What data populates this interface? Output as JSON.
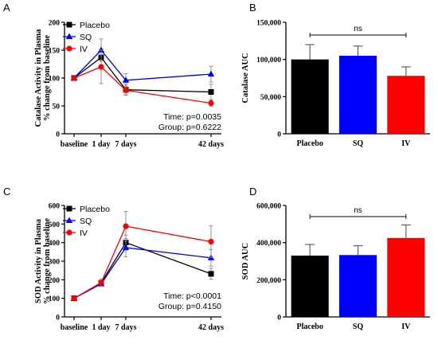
{
  "chart_data": [
    {
      "panel": "A",
      "type": "line",
      "ylabel_line1": "Catalase Activity in Plasma",
      "ylabel_line2": "% change from baseline",
      "x": [
        "baseline",
        "1 day",
        "7 days",
        "42 days"
      ],
      "x_days": [
        0,
        1,
        7,
        42
      ],
      "ylim": [
        0,
        200
      ],
      "yticks": [
        0,
        50,
        100,
        150,
        200
      ],
      "series": [
        {
          "name": "Placebo",
          "color": "#000000",
          "marker": "square",
          "values": [
            100,
            137,
            79,
            75
          ],
          "errors": [
            0,
            15,
            10,
            14
          ]
        },
        {
          "name": "SQ",
          "color": "#0000ff",
          "marker": "triangle",
          "values": [
            100,
            150,
            96,
            107
          ],
          "errors": [
            0,
            20,
            12,
            14
          ]
        },
        {
          "name": "IV",
          "color": "#ff0000",
          "marker": "circle",
          "values": [
            100,
            120,
            78,
            55
          ],
          "errors": [
            0,
            30,
            8,
            6
          ]
        }
      ],
      "annotations": [
        "Time: p=0.0035",
        "Group: p=0.6222"
      ]
    },
    {
      "panel": "B",
      "type": "bar",
      "ylabel": "Catalase AUC",
      "categories": [
        "Placebo",
        "SQ",
        "IV"
      ],
      "values": [
        100000,
        105000,
        78000
      ],
      "errors": [
        20000,
        13000,
        12000
      ],
      "colors": [
        "#000000",
        "#0000ff",
        "#ff0000"
      ],
      "ylim": [
        0,
        150000
      ],
      "yticks": [
        "0",
        "50,000",
        "100,000",
        "150,000"
      ],
      "ytick_values": [
        0,
        50000,
        100000,
        150000
      ],
      "significance": "ns"
    },
    {
      "panel": "C",
      "type": "line",
      "ylabel_line1": "SOD Activity in Plasma",
      "ylabel_line2": "% change from baseline",
      "x": [
        "baseline",
        "1 day",
        "7 days",
        "42 days"
      ],
      "x_days": [
        0,
        1,
        7,
        42
      ],
      "ylim": [
        0,
        600
      ],
      "yticks": [
        0,
        100,
        200,
        300,
        400,
        500,
        600
      ],
      "series": [
        {
          "name": "Placebo",
          "color": "#000000",
          "marker": "square",
          "values": [
            100,
            183,
            400,
            232
          ],
          "errors": [
            0,
            15,
            40,
            30
          ]
        },
        {
          "name": "SQ",
          "color": "#0000ff",
          "marker": "triangle",
          "values": [
            100,
            178,
            373,
            318
          ],
          "errors": [
            0,
            15,
            50,
            45
          ]
        },
        {
          "name": "IV",
          "color": "#ff0000",
          "marker": "circle",
          "values": [
            100,
            185,
            488,
            405
          ],
          "errors": [
            0,
            20,
            80,
            85
          ]
        }
      ],
      "annotations": [
        "Time: p<0.0001",
        "Group: p=0.4150"
      ]
    },
    {
      "panel": "D",
      "type": "bar",
      "ylabel": "SOD AUC",
      "categories": [
        "Placebo",
        "SQ",
        "IV"
      ],
      "values": [
        330000,
        333000,
        425000
      ],
      "errors": [
        60000,
        50000,
        70000
      ],
      "colors": [
        "#000000",
        "#0000ff",
        "#ff0000"
      ],
      "ylim": [
        0,
        600000
      ],
      "yticks": [
        "0",
        "200,000",
        "400,000",
        "600,000"
      ],
      "ytick_values": [
        0,
        200000,
        400000,
        600000
      ],
      "significance": "ns"
    }
  ]
}
